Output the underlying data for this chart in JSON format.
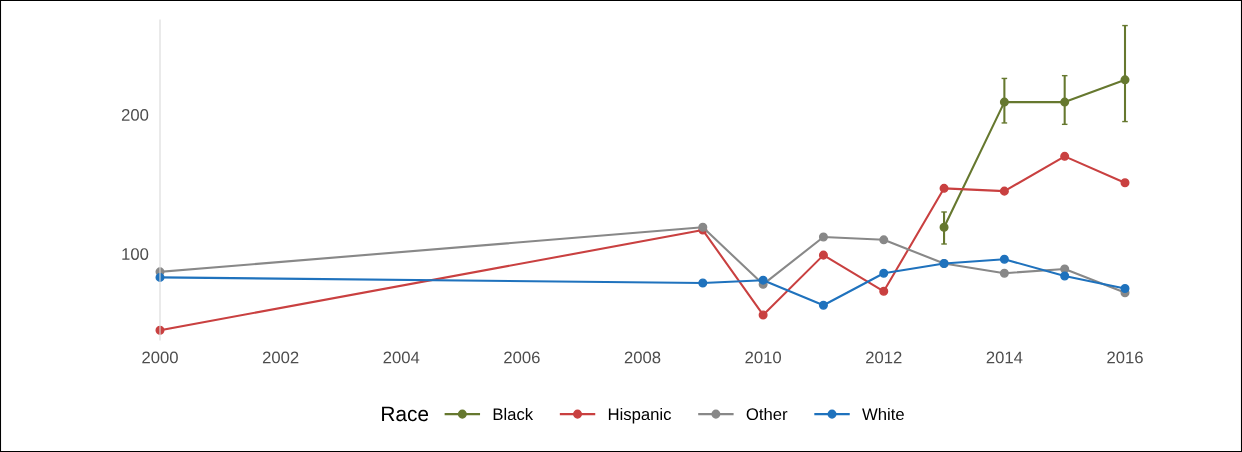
{
  "chart_data": {
    "type": "line",
    "x": [
      2000,
      2009,
      2010,
      2011,
      2012,
      2013,
      2014,
      2015,
      2016
    ],
    "series": [
      {
        "name": "Black",
        "color": "#66782f",
        "values": [
          null,
          null,
          null,
          null,
          null,
          119,
          209,
          209,
          225
        ],
        "errors": [
          null,
          null,
          null,
          null,
          null,
          [
            107,
            130
          ],
          [
            194,
            226
          ],
          [
            193,
            228
          ],
          [
            195,
            264
          ]
        ]
      },
      {
        "name": "Hispanic",
        "color": "#c94040",
        "values": [
          45,
          117,
          56,
          99,
          73,
          147,
          145,
          170,
          151
        ]
      },
      {
        "name": "Other",
        "color": "#888888",
        "values": [
          87,
          119,
          78,
          112,
          110,
          93,
          86,
          89,
          72
        ]
      },
      {
        "name": "White",
        "color": "#1f72bd",
        "values": [
          83,
          79,
          81,
          63,
          86,
          93,
          96,
          84,
          75
        ]
      }
    ],
    "legend_title": "Race",
    "legend": "bottom",
    "marker": "circle",
    "line_style": "solid",
    "grid": false,
    "xlim": [
      2000,
      2016
    ],
    "xticks": [
      2000,
      2002,
      2004,
      2006,
      2008,
      2010,
      2012,
      2014,
      2016
    ],
    "ylim": [
      38,
      268
    ],
    "yticks": [
      100,
      200
    ]
  }
}
